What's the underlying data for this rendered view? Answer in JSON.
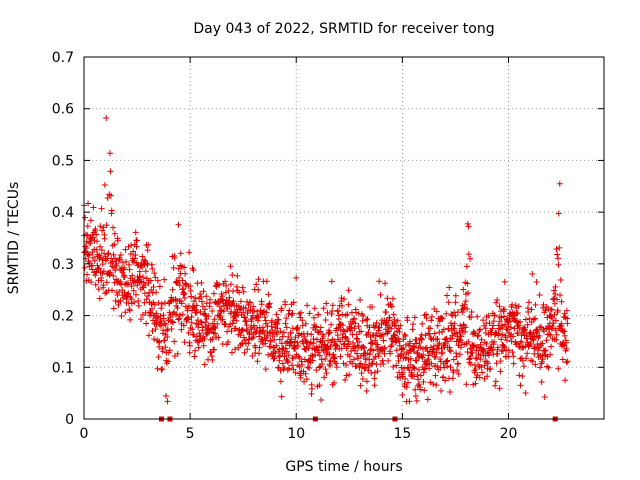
{
  "chart_data": {
    "type": "scatter",
    "title": "Day 043 of 2022, SRMTID for receiver tong",
    "xlabel": "GPS time / hours",
    "ylabel": "SRMTID / TECUs",
    "xlim": [
      0,
      24.5
    ],
    "ylim": [
      0,
      0.7
    ],
    "xticks": [
      0,
      5,
      10,
      15,
      20
    ],
    "xtick_labels": [
      "0",
      "5",
      "10",
      "15",
      "20"
    ],
    "yticks": [
      0,
      0.1,
      0.2,
      0.3,
      0.4,
      0.5,
      0.6,
      0.7
    ],
    "ytick_labels": [
      "0",
      "0.1",
      "0.2",
      "0.3",
      "0.4",
      "0.5",
      "0.6",
      "0.7"
    ],
    "grid": true,
    "marker": "plus",
    "marker_color": "#e00000",
    "gap_marker_color": "#e00000",
    "gap_markers_x": [
      3.65,
      4.05,
      10.9,
      14.65,
      22.2
    ],
    "series": [
      {
        "name": "SRMTID",
        "trend": [
          [
            0.0,
            0.33
          ],
          [
            0.3,
            0.33
          ],
          [
            0.6,
            0.33
          ],
          [
            0.9,
            0.29
          ],
          [
            1.2,
            0.3
          ],
          [
            1.5,
            0.28
          ],
          [
            1.8,
            0.26
          ],
          [
            2.1,
            0.26
          ],
          [
            2.4,
            0.3
          ],
          [
            2.7,
            0.28
          ],
          [
            3.0,
            0.24
          ],
          [
            3.3,
            0.22
          ],
          [
            3.6,
            0.18
          ],
          [
            3.9,
            0.15
          ],
          [
            4.2,
            0.22
          ],
          [
            4.5,
            0.25
          ],
          [
            4.8,
            0.23
          ],
          [
            5.1,
            0.2
          ],
          [
            5.4,
            0.18
          ],
          [
            5.7,
            0.18
          ],
          [
            6.0,
            0.19
          ],
          [
            6.3,
            0.21
          ],
          [
            6.6,
            0.21
          ],
          [
            6.9,
            0.22
          ],
          [
            7.2,
            0.21
          ],
          [
            7.5,
            0.2
          ],
          [
            7.8,
            0.19
          ],
          [
            8.1,
            0.18
          ],
          [
            8.4,
            0.18
          ],
          [
            8.7,
            0.17
          ],
          [
            9.0,
            0.16
          ],
          [
            9.3,
            0.15
          ],
          [
            9.6,
            0.15
          ],
          [
            9.9,
            0.15
          ],
          [
            10.2,
            0.14
          ],
          [
            10.5,
            0.14
          ],
          [
            10.8,
            0.13
          ],
          [
            11.1,
            0.14
          ],
          [
            11.4,
            0.14
          ],
          [
            11.7,
            0.15
          ],
          [
            12.0,
            0.16
          ],
          [
            12.3,
            0.17
          ],
          [
            12.6,
            0.16
          ],
          [
            12.9,
            0.15
          ],
          [
            13.2,
            0.14
          ],
          [
            13.5,
            0.14
          ],
          [
            13.8,
            0.15
          ],
          [
            14.1,
            0.15
          ],
          [
            14.4,
            0.17
          ],
          [
            14.7,
            0.16
          ],
          [
            15.0,
            0.12
          ],
          [
            15.3,
            0.11
          ],
          [
            15.6,
            0.11
          ],
          [
            15.9,
            0.12
          ],
          [
            16.2,
            0.13
          ],
          [
            16.5,
            0.14
          ],
          [
            16.8,
            0.15
          ],
          [
            17.1,
            0.15
          ],
          [
            17.4,
            0.16
          ],
          [
            17.7,
            0.16
          ],
          [
            18.0,
            0.17
          ],
          [
            18.3,
            0.13
          ],
          [
            18.6,
            0.12
          ],
          [
            18.9,
            0.13
          ],
          [
            19.2,
            0.15
          ],
          [
            19.5,
            0.16
          ],
          [
            19.8,
            0.17
          ],
          [
            20.1,
            0.18
          ],
          [
            20.4,
            0.17
          ],
          [
            20.7,
            0.16
          ],
          [
            21.0,
            0.17
          ],
          [
            21.3,
            0.16
          ],
          [
            21.6,
            0.15
          ],
          [
            21.9,
            0.16
          ],
          [
            22.2,
            0.22
          ],
          [
            22.5,
            0.16
          ],
          [
            22.8,
            0.15
          ]
        ],
        "spikes": [
          {
            "center": 1.1,
            "width": 0.35,
            "height": 0.36
          },
          {
            "center": 4.2,
            "width": 0.15,
            "height": 0.18
          },
          {
            "center": 10.0,
            "width": 0.1,
            "height": 0.16
          },
          {
            "center": 18.1,
            "width": 0.18,
            "height": 0.32
          },
          {
            "center": 22.4,
            "width": 0.2,
            "height": 0.38
          }
        ]
      }
    ]
  }
}
